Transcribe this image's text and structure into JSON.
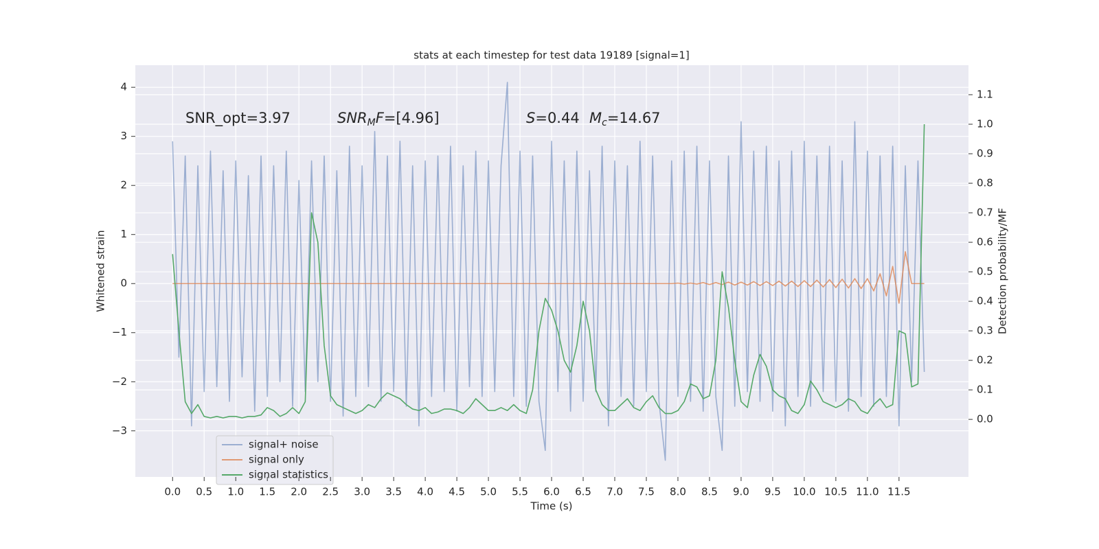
{
  "chart_data": {
    "type": "line",
    "title": "stats at each timestep for test data 19189 [signal=1]",
    "xlabel": "Time (s)",
    "ylabel": "Whitened strain",
    "y2label": "Detection probability/MF",
    "annotations": [
      [
        {
          "text": "SNR_opt=3.97"
        }
      ],
      [
        {
          "text": "SNR",
          "style": "italic"
        },
        {
          "text": "M",
          "style": "sub"
        },
        {
          "text": "F",
          "style": "italic"
        },
        {
          "text": "=[4.96]"
        }
      ],
      [
        {
          "text": "S",
          "style": "italic"
        },
        {
          "text": "=0.44"
        }
      ],
      [
        {
          "text": "M",
          "style": "italic"
        },
        {
          "text": "c",
          "style": "sub"
        },
        {
          "text": "=14.67"
        }
      ]
    ],
    "x": [
      0.0,
      0.1,
      0.2,
      0.3,
      0.4,
      0.5,
      0.6,
      0.7,
      0.8,
      0.9,
      1.0,
      1.1,
      1.2,
      1.3,
      1.4,
      1.5,
      1.6,
      1.7,
      1.8,
      1.9,
      2.0,
      2.1,
      2.2,
      2.3,
      2.4,
      2.5,
      2.6,
      2.7,
      2.8,
      2.9,
      3.0,
      3.1,
      3.2,
      3.3,
      3.4,
      3.5,
      3.6,
      3.7,
      3.8,
      3.9,
      4.0,
      4.1,
      4.2,
      4.3,
      4.4,
      4.5,
      4.6,
      4.7,
      4.8,
      4.9,
      5.0,
      5.1,
      5.2,
      5.3,
      5.4,
      5.5,
      5.6,
      5.7,
      5.8,
      5.9,
      6.0,
      6.1,
      6.2,
      6.3,
      6.4,
      6.5,
      6.6,
      6.7,
      6.8,
      6.9,
      7.0,
      7.1,
      7.2,
      7.3,
      7.4,
      7.5,
      7.6,
      7.7,
      7.8,
      7.9,
      8.0,
      8.1,
      8.2,
      8.3,
      8.4,
      8.5,
      8.6,
      8.7,
      8.8,
      8.9,
      9.0,
      9.1,
      9.2,
      9.3,
      9.4,
      9.5,
      9.6,
      9.7,
      9.8,
      9.9,
      10.0,
      10.1,
      10.2,
      10.3,
      10.4,
      10.5,
      10.6,
      10.7,
      10.8,
      10.9,
      11.0,
      11.1,
      11.2,
      11.3,
      11.4,
      11.5,
      11.6,
      11.7,
      11.8,
      11.9
    ],
    "series": [
      {
        "name": "signal+ noise",
        "color": "#4c72b0",
        "opacity": 0.5,
        "axis": "y",
        "values": [
          2.9,
          -1.5,
          2.6,
          -2.9,
          2.4,
          -2.2,
          2.7,
          -2.1,
          2.3,
          -2.4,
          2.5,
          -1.9,
          2.2,
          -2.6,
          2.6,
          -2.3,
          2.4,
          -2.0,
          2.7,
          -2.5,
          2.1,
          -2.2,
          2.5,
          -2.0,
          2.6,
          -2.4,
          2.3,
          -2.7,
          2.8,
          -2.3,
          2.4,
          -2.1,
          3.1,
          -2.4,
          2.6,
          -2.2,
          2.9,
          -2.5,
          2.4,
          -2.9,
          2.5,
          -2.3,
          2.6,
          -2.2,
          2.8,
          -2.6,
          2.4,
          -2.1,
          2.7,
          -2.3,
          2.5,
          -2.2,
          2.4,
          4.1,
          -2.3,
          2.7,
          -2.5,
          2.6,
          -2.4,
          -3.4,
          2.9,
          -2.2,
          2.5,
          -2.6,
          2.7,
          -2.4,
          2.3,
          -2.2,
          2.8,
          -2.9,
          2.5,
          -2.3,
          2.4,
          -2.5,
          2.9,
          -2.2,
          2.6,
          -2.4,
          -3.6,
          2.5,
          -2.3,
          2.7,
          -2.4,
          2.8,
          -2.6,
          2.5,
          -2.3,
          -3.4,
          2.6,
          -2.5,
          3.3,
          -2.2,
          2.7,
          -2.4,
          2.8,
          -2.6,
          2.5,
          -2.9,
          2.7,
          -2.3,
          2.9,
          -2.5,
          2.6,
          -2.2,
          2.8,
          -2.4,
          2.5,
          -2.6,
          3.3,
          -2.3,
          2.7,
          -2.5,
          2.6,
          -2.3,
          2.8,
          -2.9,
          2.4,
          -2.0,
          2.5,
          -1.8
        ]
      },
      {
        "name": "signal only",
        "color": "#dd8452",
        "opacity": 0.8,
        "axis": "y",
        "values": [
          0,
          0,
          0,
          0,
          0,
          0,
          0,
          0,
          0,
          0,
          0,
          0,
          0,
          0,
          0,
          0,
          0,
          0,
          0,
          0,
          0,
          0,
          0,
          0,
          0,
          0,
          0,
          0,
          0,
          0,
          0,
          0,
          0,
          0,
          0,
          0,
          0,
          0,
          0,
          0,
          0,
          0,
          0,
          0,
          0,
          0,
          0,
          0,
          0,
          0,
          0,
          0,
          0,
          0,
          0,
          0,
          0,
          0,
          0,
          0,
          0,
          0,
          0,
          0,
          0,
          0,
          0,
          0,
          0,
          0,
          0,
          0,
          0,
          0,
          0,
          0,
          0,
          0,
          0,
          0,
          0.01,
          -0.01,
          0.01,
          -0.01,
          0.02,
          -0.02,
          0.02,
          -0.02,
          0.03,
          -0.03,
          0.03,
          -0.03,
          0.04,
          -0.04,
          0.04,
          -0.04,
          0.05,
          -0.05,
          0.05,
          -0.06,
          0.06,
          -0.06,
          0.07,
          -0.07,
          0.08,
          -0.08,
          0.09,
          -0.09,
          0.1,
          -0.1,
          0.1,
          -0.15,
          0.2,
          -0.25,
          0.35,
          -0.4,
          0.65,
          0,
          0,
          0
        ]
      },
      {
        "name": "signal statistics",
        "color": "#55a868",
        "opacity": 1,
        "axis": "y2",
        "values": [
          0.56,
          0.3,
          0.06,
          0.02,
          0.05,
          0.01,
          0.005,
          0.01,
          0.005,
          0.01,
          0.01,
          0.005,
          0.01,
          0.01,
          0.015,
          0.04,
          0.03,
          0.01,
          0.02,
          0.04,
          0.02,
          0.06,
          0.7,
          0.6,
          0.25,
          0.08,
          0.05,
          0.04,
          0.03,
          0.02,
          0.03,
          0.05,
          0.04,
          0.07,
          0.09,
          0.08,
          0.07,
          0.05,
          0.035,
          0.03,
          0.04,
          0.02,
          0.025,
          0.035,
          0.035,
          0.03,
          0.02,
          0.04,
          0.07,
          0.05,
          0.03,
          0.03,
          0.04,
          0.03,
          0.05,
          0.03,
          0.02,
          0.1,
          0.3,
          0.41,
          0.37,
          0.3,
          0.2,
          0.16,
          0.25,
          0.4,
          0.3,
          0.1,
          0.05,
          0.03,
          0.03,
          0.05,
          0.07,
          0.04,
          0.03,
          0.06,
          0.08,
          0.04,
          0.02,
          0.02,
          0.03,
          0.06,
          0.12,
          0.11,
          0.07,
          0.08,
          0.2,
          0.5,
          0.38,
          0.2,
          0.06,
          0.04,
          0.15,
          0.22,
          0.18,
          0.1,
          0.08,
          0.07,
          0.03,
          0.02,
          0.05,
          0.13,
          0.1,
          0.06,
          0.05,
          0.04,
          0.05,
          0.07,
          0.06,
          0.03,
          0.02,
          0.05,
          0.07,
          0.04,
          0.05,
          0.3,
          0.29,
          0.11,
          0.12,
          1.0
        ]
      }
    ],
    "xlim": [
      -0.59,
      12.6
    ],
    "xticks": [
      {
        "value": 0,
        "label": "0.0"
      },
      0.5,
      {
        "value": 1,
        "label": "1.0"
      },
      1.5,
      {
        "value": 2,
        "label": "2.0"
      },
      2.5,
      {
        "value": 3,
        "label": "3.0"
      },
      3.5,
      {
        "value": 4,
        "label": "4.0"
      },
      4.5,
      {
        "value": 5,
        "label": "5.0"
      },
      5.5,
      {
        "value": 6,
        "label": "6.0"
      },
      6.5,
      {
        "value": 7,
        "label": "7.0"
      },
      7.5,
      {
        "value": 8,
        "label": "8.0"
      },
      8.5,
      {
        "value": 9,
        "label": "9.0"
      },
      9.5,
      {
        "value": 10,
        "label": "10.0"
      },
      10.5,
      {
        "value": 11,
        "label": "11.0"
      },
      11.5
    ],
    "ylim": [
      -3.94,
      4.45
    ],
    "yticks": [
      {
        "value": -3,
        "label": "−3"
      },
      {
        "value": -2,
        "label": "−2"
      },
      {
        "value": -1,
        "label": "−1"
      },
      0,
      1,
      2,
      3,
      4
    ],
    "y2lim": [
      -0.195,
      1.2
    ],
    "y2ticks": [
      {
        "value": 0,
        "label": "0.0"
      },
      0.1,
      0.2,
      0.3,
      0.4,
      0.5,
      0.6,
      0.7,
      0.8,
      0.9,
      {
        "value": 1,
        "label": "1.0"
      },
      1.1
    ],
    "grid": true,
    "legend": "lower left",
    "background": "#eaeaf2"
  }
}
